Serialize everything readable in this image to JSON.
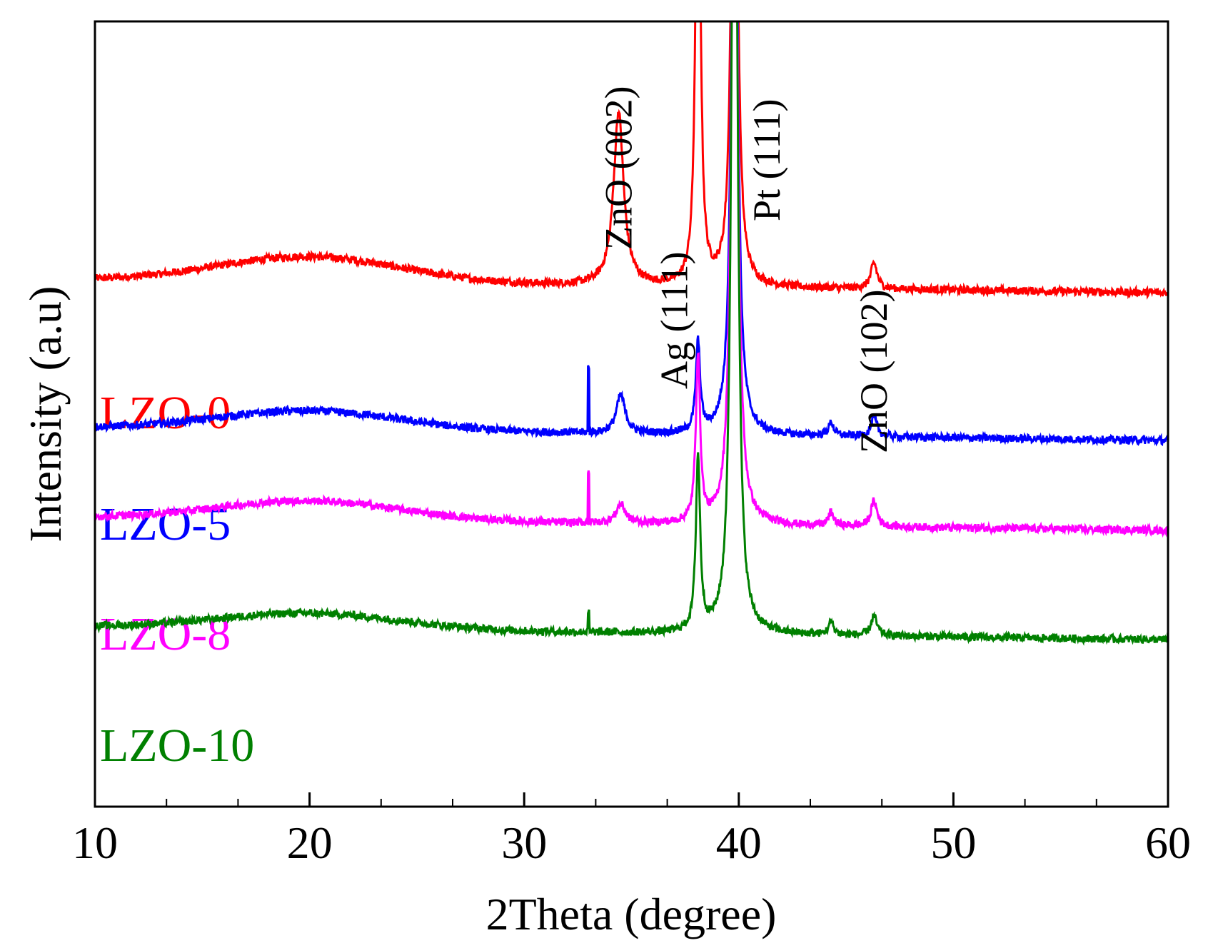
{
  "chart_data": {
    "type": "line",
    "title": "",
    "xlabel": "2Theta (degree)",
    "ylabel": "Intensity (a.u)",
    "xlim": [
      10,
      60
    ],
    "xticks": [
      10,
      20,
      30,
      40,
      50,
      60
    ],
    "xtick_labels": [
      "10",
      "20",
      "30",
      "40",
      "50",
      "60"
    ],
    "y_ticks_shown": false,
    "series": [
      {
        "name": "LZO-0",
        "color": "#ff0000",
        "baseline": 0.82,
        "humps": [
          [
            20,
            0.04,
            6
          ]
        ],
        "peaks": [
          {
            "x": 34.4,
            "h": 0.27,
            "w": 0.28
          },
          {
            "x": 38.1,
            "h": 0.9,
            "w": 0.12
          },
          {
            "x": 39.8,
            "h": 1.2,
            "w": 0.14
          },
          {
            "x": 46.3,
            "h": 0.04,
            "w": 0.18
          }
        ],
        "spikes": []
      },
      {
        "name": "LZO-5",
        "color": "#0000ff",
        "baseline": 0.59,
        "humps": [
          [
            20,
            0.03,
            6
          ]
        ],
        "peaks": [
          {
            "x": 34.5,
            "h": 0.06,
            "w": 0.25
          },
          {
            "x": 38.1,
            "h": 0.14,
            "w": 0.12
          },
          {
            "x": 39.8,
            "h": 1.4,
            "w": 0.14
          },
          {
            "x": 44.3,
            "h": 0.02,
            "w": 0.15
          },
          {
            "x": 46.3,
            "h": 0.03,
            "w": 0.17
          }
        ],
        "spikes": [
          {
            "x": 33.0,
            "h": 0.1
          }
        ]
      },
      {
        "name": "LZO-8",
        "color": "#ff00ff",
        "baseline": 0.45,
        "humps": [
          [
            20,
            0.03,
            6
          ]
        ],
        "peaks": [
          {
            "x": 34.5,
            "h": 0.03,
            "w": 0.25
          },
          {
            "x": 38.1,
            "h": 0.26,
            "w": 0.12
          },
          {
            "x": 39.8,
            "h": 1.6,
            "w": 0.14
          },
          {
            "x": 44.3,
            "h": 0.02,
            "w": 0.15
          },
          {
            "x": 46.3,
            "h": 0.04,
            "w": 0.17
          }
        ],
        "spikes": [
          {
            "x": 33.0,
            "h": 0.08
          }
        ]
      },
      {
        "name": "LZO-10",
        "color": "#008000",
        "baseline": 0.28,
        "humps": [
          [
            20,
            0.025,
            6
          ]
        ],
        "peaks": [
          {
            "x": 38.1,
            "h": 0.27,
            "w": 0.12
          },
          {
            "x": 39.8,
            "h": 1.8,
            "w": 0.14
          },
          {
            "x": 44.3,
            "h": 0.02,
            "w": 0.15
          },
          {
            "x": 46.3,
            "h": 0.03,
            "w": 0.17
          }
        ],
        "spikes": [
          {
            "x": 33.0,
            "h": 0.03
          }
        ]
      }
    ],
    "annotations": [
      {
        "text": "ZnO (002)",
        "x": 34.4
      },
      {
        "text": "Ag (111)",
        "x": 37.0
      },
      {
        "text": "Pt (111)",
        "x": 41.3
      },
      {
        "text": "ZnO (102)",
        "x": 46.3
      }
    ]
  }
}
